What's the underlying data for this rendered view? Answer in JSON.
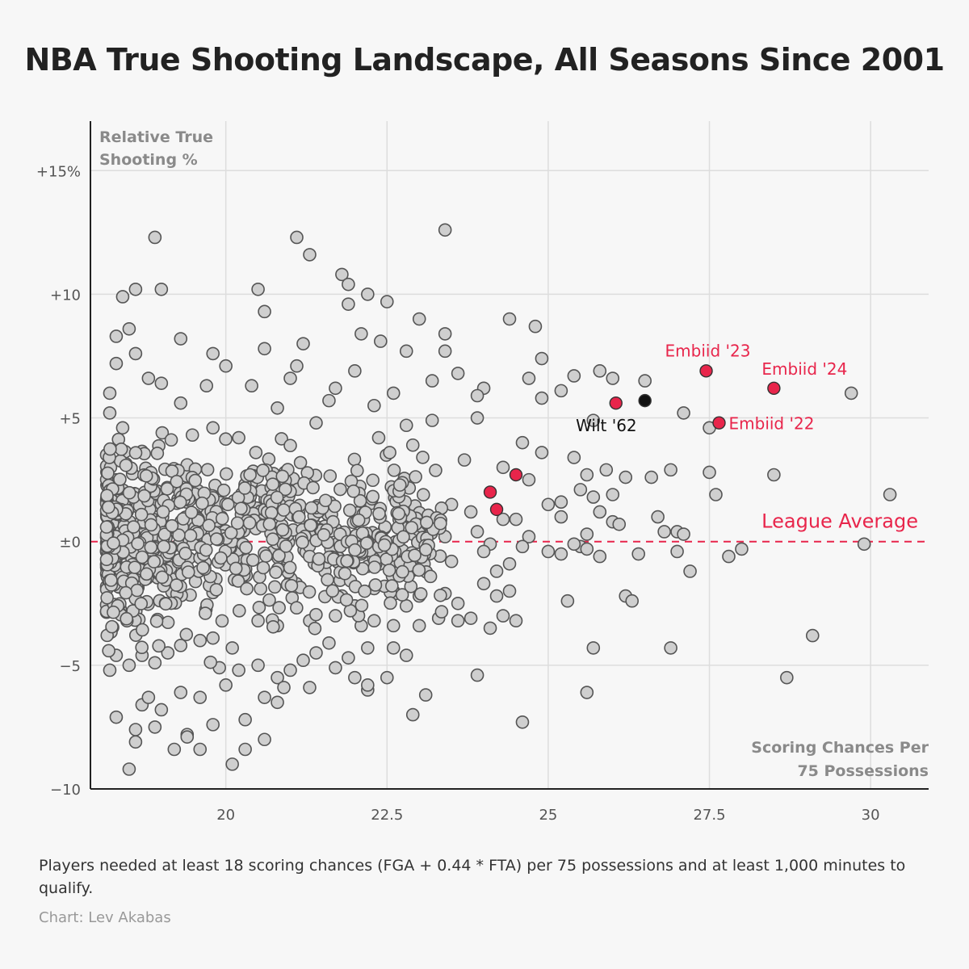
{
  "title": "NBA True Shooting Landscape, All Seasons Since 2001",
  "footnote": "Players needed at least 18 scoring chances (FGA + 0.44 * FTA) per 75 possessions and at least 1,000 minutes to qualify.",
  "credit": "Chart: Lev Akabas",
  "colors": {
    "highlight": "#e8254b",
    "wilt": "#111111",
    "point_fill": "#cfcfcf",
    "point_stroke": "#555555",
    "reference": "#e8254b",
    "grid": "#dddddd"
  },
  "chart_data": {
    "type": "scatter",
    "xlabel": [
      "Scoring Chances Per",
      "75 Possessions"
    ],
    "ylabel": [
      "Relative True",
      "Shooting %"
    ],
    "xlim": [
      17.9,
      30.9
    ],
    "ylim": [
      -10,
      17
    ],
    "x_ticks": [
      {
        "value": 20,
        "label": "20"
      },
      {
        "value": 22.5,
        "label": "22.5"
      },
      {
        "value": 25,
        "label": "25"
      },
      {
        "value": 27.5,
        "label": "27.5"
      },
      {
        "value": 30,
        "label": "30"
      }
    ],
    "y_ticks": [
      {
        "value": 15,
        "label": "+15%"
      },
      {
        "value": 10,
        "label": "+10"
      },
      {
        "value": 5,
        "label": "+5"
      },
      {
        "value": 0,
        "label": "±0"
      },
      {
        "value": -5,
        "label": "−5"
      },
      {
        "value": -10,
        "label": "−10"
      }
    ],
    "reference_line": {
      "y": 0,
      "label": "League Average"
    },
    "highlights": [
      {
        "label": "Embiid '23",
        "x": 27.45,
        "y": 6.9,
        "color": "highlight"
      },
      {
        "label": "Embiid '24",
        "x": 28.5,
        "y": 6.2,
        "color": "highlight"
      },
      {
        "label": "Embiid '22",
        "x": 27.65,
        "y": 4.8,
        "color": "highlight"
      },
      {
        "label": "Wilt '62",
        "x": 26.5,
        "y": 5.7,
        "color": "wilt"
      },
      {
        "label": "",
        "x": 26.05,
        "y": 5.6,
        "color": "highlight"
      },
      {
        "label": "",
        "x": 24.5,
        "y": 2.7,
        "color": "highlight"
      },
      {
        "label": "",
        "x": 24.1,
        "y": 2.0,
        "color": "highlight"
      },
      {
        "label": "",
        "x": 24.2,
        "y": 1.3,
        "color": "highlight"
      }
    ],
    "points": [
      [
        18.9,
        12.3
      ],
      [
        21.1,
        12.3
      ],
      [
        21.3,
        11.6
      ],
      [
        23.4,
        12.6
      ],
      [
        20.5,
        10.2
      ],
      [
        18.6,
        10.2
      ],
      [
        19.0,
        10.2
      ],
      [
        21.8,
        10.8
      ],
      [
        21.9,
        10.4
      ],
      [
        22.2,
        10.0
      ],
      [
        18.4,
        9.9
      ],
      [
        22.5,
        9.7
      ],
      [
        20.6,
        9.3
      ],
      [
        21.9,
        9.6
      ],
      [
        23.0,
        9.0
      ],
      [
        24.4,
        9.0
      ],
      [
        24.8,
        8.7
      ],
      [
        18.3,
        8.3
      ],
      [
        18.5,
        8.6
      ],
      [
        22.1,
        8.4
      ],
      [
        19.3,
        8.2
      ],
      [
        21.2,
        8.0
      ],
      [
        23.4,
        8.4
      ],
      [
        18.6,
        7.6
      ],
      [
        19.8,
        7.6
      ],
      [
        20.6,
        7.8
      ],
      [
        22.4,
        8.1
      ],
      [
        22.8,
        7.7
      ],
      [
        23.4,
        7.7
      ],
      [
        24.9,
        7.4
      ],
      [
        18.3,
        7.2
      ],
      [
        20.0,
        7.1
      ],
      [
        21.1,
        7.1
      ],
      [
        22.0,
        6.9
      ],
      [
        23.6,
        6.8
      ],
      [
        25.8,
        6.9
      ],
      [
        26.0,
        6.6
      ],
      [
        25.4,
        6.7
      ],
      [
        24.7,
        6.6
      ],
      [
        23.2,
        6.5
      ],
      [
        18.2,
        6.0
      ],
      [
        18.8,
        6.6
      ],
      [
        19.0,
        6.4
      ],
      [
        19.7,
        6.3
      ],
      [
        20.4,
        6.3
      ],
      [
        21.0,
        6.6
      ],
      [
        21.7,
        6.2
      ],
      [
        22.6,
        6.0
      ],
      [
        24.0,
        6.2
      ],
      [
        25.2,
        6.1
      ],
      [
        26.5,
        6.5
      ],
      [
        29.7,
        6.0
      ],
      [
        24.9,
        5.8
      ],
      [
        23.9,
        5.9
      ],
      [
        22.3,
        5.5
      ],
      [
        19.3,
        5.6
      ],
      [
        20.8,
        5.4
      ],
      [
        21.6,
        5.7
      ],
      [
        25.7,
        4.9
      ],
      [
        27.1,
        5.2
      ],
      [
        27.5,
        4.6
      ],
      [
        23.2,
        4.9
      ],
      [
        23.9,
        5.0
      ],
      [
        24.6,
        4.0
      ],
      [
        22.8,
        4.7
      ],
      [
        21.4,
        4.8
      ],
      [
        19.8,
        4.6
      ],
      [
        18.2,
        5.2
      ],
      [
        18.4,
        4.6
      ],
      [
        20.2,
        4.2
      ],
      [
        22.9,
        3.9
      ],
      [
        23.7,
        3.3
      ],
      [
        24.3,
        3.0
      ],
      [
        24.9,
        3.6
      ],
      [
        25.4,
        3.4
      ],
      [
        25.6,
        2.7
      ],
      [
        25.9,
        2.9
      ],
      [
        26.2,
        2.6
      ],
      [
        26.6,
        2.6
      ],
      [
        26.9,
        2.9
      ],
      [
        27.5,
        2.8
      ],
      [
        28.5,
        2.7
      ],
      [
        27.6,
        1.9
      ],
      [
        30.3,
        1.9
      ],
      [
        25.5,
        2.1
      ],
      [
        25.7,
        1.8
      ],
      [
        26.0,
        1.9
      ],
      [
        25.2,
        1.6
      ],
      [
        25.0,
        1.5
      ],
      [
        24.7,
        2.5
      ],
      [
        24.5,
        0.9
      ],
      [
        24.3,
        0.9
      ],
      [
        23.8,
        1.2
      ],
      [
        23.5,
        1.5
      ],
      [
        23.2,
        0.5
      ],
      [
        22.8,
        1.0
      ],
      [
        22.9,
        0.3
      ],
      [
        23.4,
        0.2
      ],
      [
        23.9,
        0.4
      ],
      [
        24.1,
        -0.1
      ],
      [
        24.7,
        0.2
      ],
      [
        25.2,
        1.0
      ],
      [
        25.8,
        1.2
      ],
      [
        26.0,
        0.8
      ],
      [
        26.1,
        0.7
      ],
      [
        26.7,
        1.0
      ],
      [
        26.8,
        0.4
      ],
      [
        27.0,
        0.4
      ],
      [
        27.1,
        0.3
      ],
      [
        27.0,
        -0.4
      ],
      [
        26.4,
        -0.5
      ],
      [
        25.8,
        -0.6
      ],
      [
        25.5,
        -0.2
      ],
      [
        25.2,
        -0.5
      ],
      [
        25.0,
        -0.4
      ],
      [
        24.6,
        -0.2
      ],
      [
        24.4,
        -0.9
      ],
      [
        24.2,
        -1.2
      ],
      [
        24.0,
        -0.4
      ],
      [
        23.5,
        -0.8
      ],
      [
        22.9,
        -0.6
      ],
      [
        22.6,
        -0.8
      ],
      [
        22.4,
        -0.5
      ],
      [
        22.2,
        -1.0
      ],
      [
        22.1,
        -0.5
      ],
      [
        25.4,
        -0.1
      ],
      [
        25.6,
        -0.3
      ],
      [
        25.6,
        0.3
      ],
      [
        27.8,
        -0.6
      ],
      [
        28.0,
        -0.3
      ],
      [
        29.9,
        -0.1
      ],
      [
        27.2,
        -1.2
      ],
      [
        25.3,
        -2.4
      ],
      [
        26.2,
        -2.2
      ],
      [
        26.3,
        -2.4
      ],
      [
        24.4,
        -2.0
      ],
      [
        24.2,
        -2.2
      ],
      [
        24.0,
        -1.7
      ],
      [
        23.4,
        -2.1
      ],
      [
        23.6,
        -2.5
      ],
      [
        23.0,
        -2.2
      ],
      [
        22.8,
        -2.6
      ],
      [
        22.6,
        -2.0
      ],
      [
        22.3,
        -1.9
      ],
      [
        22.0,
        -2.6
      ],
      [
        21.8,
        -2.2
      ],
      [
        24.3,
        -3.0
      ],
      [
        24.5,
        -3.2
      ],
      [
        24.1,
        -3.5
      ],
      [
        23.8,
        -3.1
      ],
      [
        23.6,
        -3.2
      ],
      [
        23.3,
        -3.1
      ],
      [
        23.0,
        -3.4
      ],
      [
        22.6,
        -3.4
      ],
      [
        22.3,
        -3.2
      ],
      [
        22.1,
        -3.4
      ],
      [
        21.7,
        -3.0
      ],
      [
        21.3,
        -3.2
      ],
      [
        20.8,
        -3.4
      ],
      [
        20.5,
        -3.2
      ],
      [
        25.7,
        -4.3
      ],
      [
        26.9,
        -4.3
      ],
      [
        29.1,
        -3.8
      ],
      [
        28.7,
        -5.5
      ],
      [
        25.6,
        -6.1
      ],
      [
        24.6,
        -7.3
      ],
      [
        23.9,
        -5.4
      ],
      [
        23.1,
        -6.2
      ],
      [
        22.9,
        -7.0
      ],
      [
        22.5,
        -5.5
      ],
      [
        22.8,
        -4.6
      ],
      [
        22.6,
        -4.3
      ],
      [
        22.2,
        -4.3
      ],
      [
        21.9,
        -4.7
      ],
      [
        21.6,
        -4.1
      ],
      [
        21.4,
        -4.5
      ],
      [
        21.2,
        -4.8
      ],
      [
        21.0,
        -5.2
      ],
      [
        20.8,
        -5.5
      ],
      [
        20.5,
        -5.0
      ],
      [
        21.7,
        -5.1
      ],
      [
        22.0,
        -5.5
      ],
      [
        22.2,
        -6.0
      ],
      [
        22.2,
        -5.8
      ],
      [
        21.3,
        -5.9
      ],
      [
        20.9,
        -5.9
      ],
      [
        20.6,
        -6.3
      ],
      [
        20.8,
        -6.5
      ],
      [
        20.3,
        -7.2
      ],
      [
        20.3,
        -8.4
      ],
      [
        20.1,
        -9.0
      ],
      [
        20.6,
        -8.0
      ],
      [
        19.8,
        -7.4
      ],
      [
        19.6,
        -8.4
      ],
      [
        19.4,
        -7.8
      ],
      [
        19.2,
        -8.4
      ],
      [
        19.4,
        -7.9
      ],
      [
        18.9,
        -7.5
      ],
      [
        18.6,
        -7.6
      ],
      [
        18.6,
        -8.1
      ],
      [
        18.5,
        -9.2
      ],
      [
        18.3,
        -7.1
      ],
      [
        18.7,
        -6.6
      ],
      [
        18.8,
        -6.3
      ],
      [
        19.0,
        -6.8
      ],
      [
        19.3,
        -6.1
      ],
      [
        19.6,
        -6.3
      ],
      [
        19.9,
        -5.1
      ],
      [
        20.2,
        -5.2
      ],
      [
        20.0,
        -5.8
      ],
      [
        18.2,
        -5.2
      ],
      [
        18.3,
        -4.6
      ],
      [
        18.5,
        -5.0
      ],
      [
        18.7,
        -4.6
      ],
      [
        18.9,
        -4.9
      ],
      [
        19.1,
        -4.5
      ],
      [
        19.3,
        -4.2
      ],
      [
        19.6,
        -4.0
      ],
      [
        19.8,
        -3.9
      ],
      [
        20.1,
        -4.3
      ]
    ]
  }
}
